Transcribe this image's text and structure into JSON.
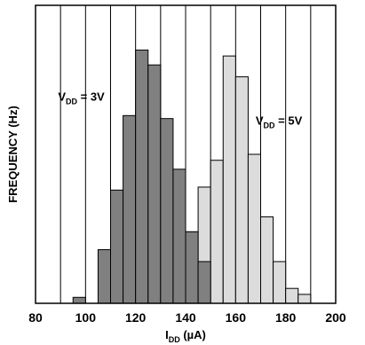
{
  "chart_data": {
    "type": "bar",
    "title": "",
    "xlabel": {
      "main": "I",
      "sub": "DD",
      "rest": " (µA)"
    },
    "ylabel": "FREQUENCY (Hz)",
    "xlim": [
      80,
      200
    ],
    "ylim": [
      0,
      100
    ],
    "x_ticks": [
      "80",
      "100",
      "120",
      "140",
      "160",
      "180",
      "200"
    ],
    "x_tick_values": [
      80,
      100,
      120,
      140,
      160,
      180,
      200
    ],
    "grid": {
      "vertical_every": 10,
      "horizontal": false
    },
    "bin_width": 5,
    "series": [
      {
        "label": {
          "main": "V",
          "sub": "DD",
          "rest": " = 3V"
        },
        "color": "#808080",
        "bins": [
          {
            "x0": 95,
            "value": 2
          },
          {
            "x0": 105,
            "value": 18
          },
          {
            "x0": 110,
            "value": 38
          },
          {
            "x0": 115,
            "value": 63
          },
          {
            "x0": 120,
            "value": 85
          },
          {
            "x0": 125,
            "value": 80
          },
          {
            "x0": 130,
            "value": 62
          },
          {
            "x0": 135,
            "value": 45
          },
          {
            "x0": 140,
            "value": 24
          },
          {
            "x0": 145,
            "value": 14
          }
        ]
      },
      {
        "label": {
          "main": "V",
          "sub": "DD",
          "rest": " = 5V"
        },
        "color": "#dcdcdc",
        "bins": [
          {
            "x0": 140,
            "value": 24
          },
          {
            "x0": 145,
            "value": 39
          },
          {
            "x0": 150,
            "value": 48
          },
          {
            "x0": 155,
            "value": 83
          },
          {
            "x0": 160,
            "value": 76
          },
          {
            "x0": 165,
            "value": 50
          },
          {
            "x0": 170,
            "value": 29
          },
          {
            "x0": 175,
            "value": 14
          },
          {
            "x0": 180,
            "value": 5
          },
          {
            "x0": 185,
            "value": 3
          }
        ]
      }
    ],
    "annotations_near": [
      {
        "series": 0,
        "x": 89,
        "y": 68
      },
      {
        "series": 1,
        "x": 168,
        "y": 60
      }
    ]
  }
}
